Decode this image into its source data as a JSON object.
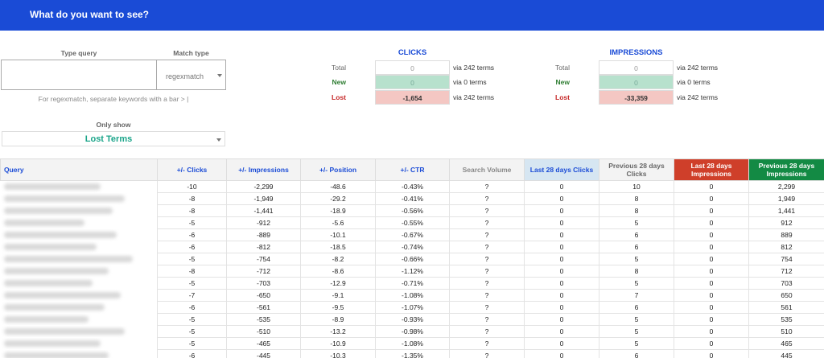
{
  "header": {
    "title": "What do you want to see?"
  },
  "controls": {
    "query_label": "Type query",
    "query_value": "",
    "match_label": "Match type",
    "match_value": "regexmatch",
    "hint": "For regexmatch, separate keywords with a bar > |",
    "only_show_label": "Only show",
    "only_show_value": "Lost Terms"
  },
  "clicks": {
    "title": "CLICKS",
    "total": {
      "label": "Total",
      "value": "0",
      "via": "via 242 terms"
    },
    "new": {
      "label": "New",
      "value": "0",
      "via": "via 0 terms"
    },
    "lost": {
      "label": "Lost",
      "value": "-1,654",
      "via": "via 242 terms"
    }
  },
  "impressions": {
    "title": "IMPRESSIONS",
    "total": {
      "label": "Total",
      "value": "0",
      "via": "via 242 terms"
    },
    "new": {
      "label": "New",
      "value": "0",
      "via": "via 0 terms"
    },
    "lost": {
      "label": "Lost",
      "value": "-33,359",
      "via": "via 242 terms"
    }
  },
  "table": {
    "columns": [
      "Query",
      "+/- Clicks",
      "+/- Impressions",
      "+/- Position",
      "+/- CTR",
      "Search Volume",
      "Last 28 days Clicks",
      "Previous 28 days Clicks",
      "Last 28 days Impressions",
      "Previous 28 days Impressions"
    ],
    "rows": [
      [
        "",
        "-10",
        "-2,299",
        "-48.6",
        "-0.43%",
        "?",
        "0",
        "10",
        "0",
        "2,299"
      ],
      [
        "",
        "-8",
        "-1,949",
        "-29.2",
        "-0.41%",
        "?",
        "0",
        "8",
        "0",
        "1,949"
      ],
      [
        "",
        "-8",
        "-1,441",
        "-18.9",
        "-0.56%",
        "?",
        "0",
        "8",
        "0",
        "1,441"
      ],
      [
        "",
        "-5",
        "-912",
        "-5.6",
        "-0.55%",
        "?",
        "0",
        "5",
        "0",
        "912"
      ],
      [
        "",
        "-6",
        "-889",
        "-10.1",
        "-0.67%",
        "?",
        "0",
        "6",
        "0",
        "889"
      ],
      [
        "",
        "-6",
        "-812",
        "-18.5",
        "-0.74%",
        "?",
        "0",
        "6",
        "0",
        "812"
      ],
      [
        "",
        "-5",
        "-754",
        "-8.2",
        "-0.66%",
        "?",
        "0",
        "5",
        "0",
        "754"
      ],
      [
        "",
        "-8",
        "-712",
        "-8.6",
        "-1.12%",
        "?",
        "0",
        "8",
        "0",
        "712"
      ],
      [
        "",
        "-5",
        "-703",
        "-12.9",
        "-0.71%",
        "?",
        "0",
        "5",
        "0",
        "703"
      ],
      [
        "",
        "-7",
        "-650",
        "-9.1",
        "-1.08%",
        "?",
        "0",
        "7",
        "0",
        "650"
      ],
      [
        "",
        "-6",
        "-561",
        "-9.5",
        "-1.07%",
        "?",
        "0",
        "6",
        "0",
        "561"
      ],
      [
        "",
        "-5",
        "-535",
        "-8.9",
        "-0.93%",
        "?",
        "0",
        "5",
        "0",
        "535"
      ],
      [
        "",
        "-5",
        "-510",
        "-13.2",
        "-0.98%",
        "?",
        "0",
        "5",
        "0",
        "510"
      ],
      [
        "",
        "-5",
        "-465",
        "-10.9",
        "-1.08%",
        "?",
        "0",
        "5",
        "0",
        "465"
      ],
      [
        "",
        "-6",
        "-445",
        "-10.3",
        "-1.35%",
        "?",
        "0",
        "6",
        "0",
        "445"
      ]
    ]
  },
  "colors": {
    "header_bg": "#1a4bd6",
    "accent_teal": "#1ba58a",
    "new_bg": "#b7e1cd",
    "lost_bg": "#f4c7c3",
    "last28_impr_bg": "#cf3f2a",
    "prev28_impr_bg": "#138a44"
  }
}
